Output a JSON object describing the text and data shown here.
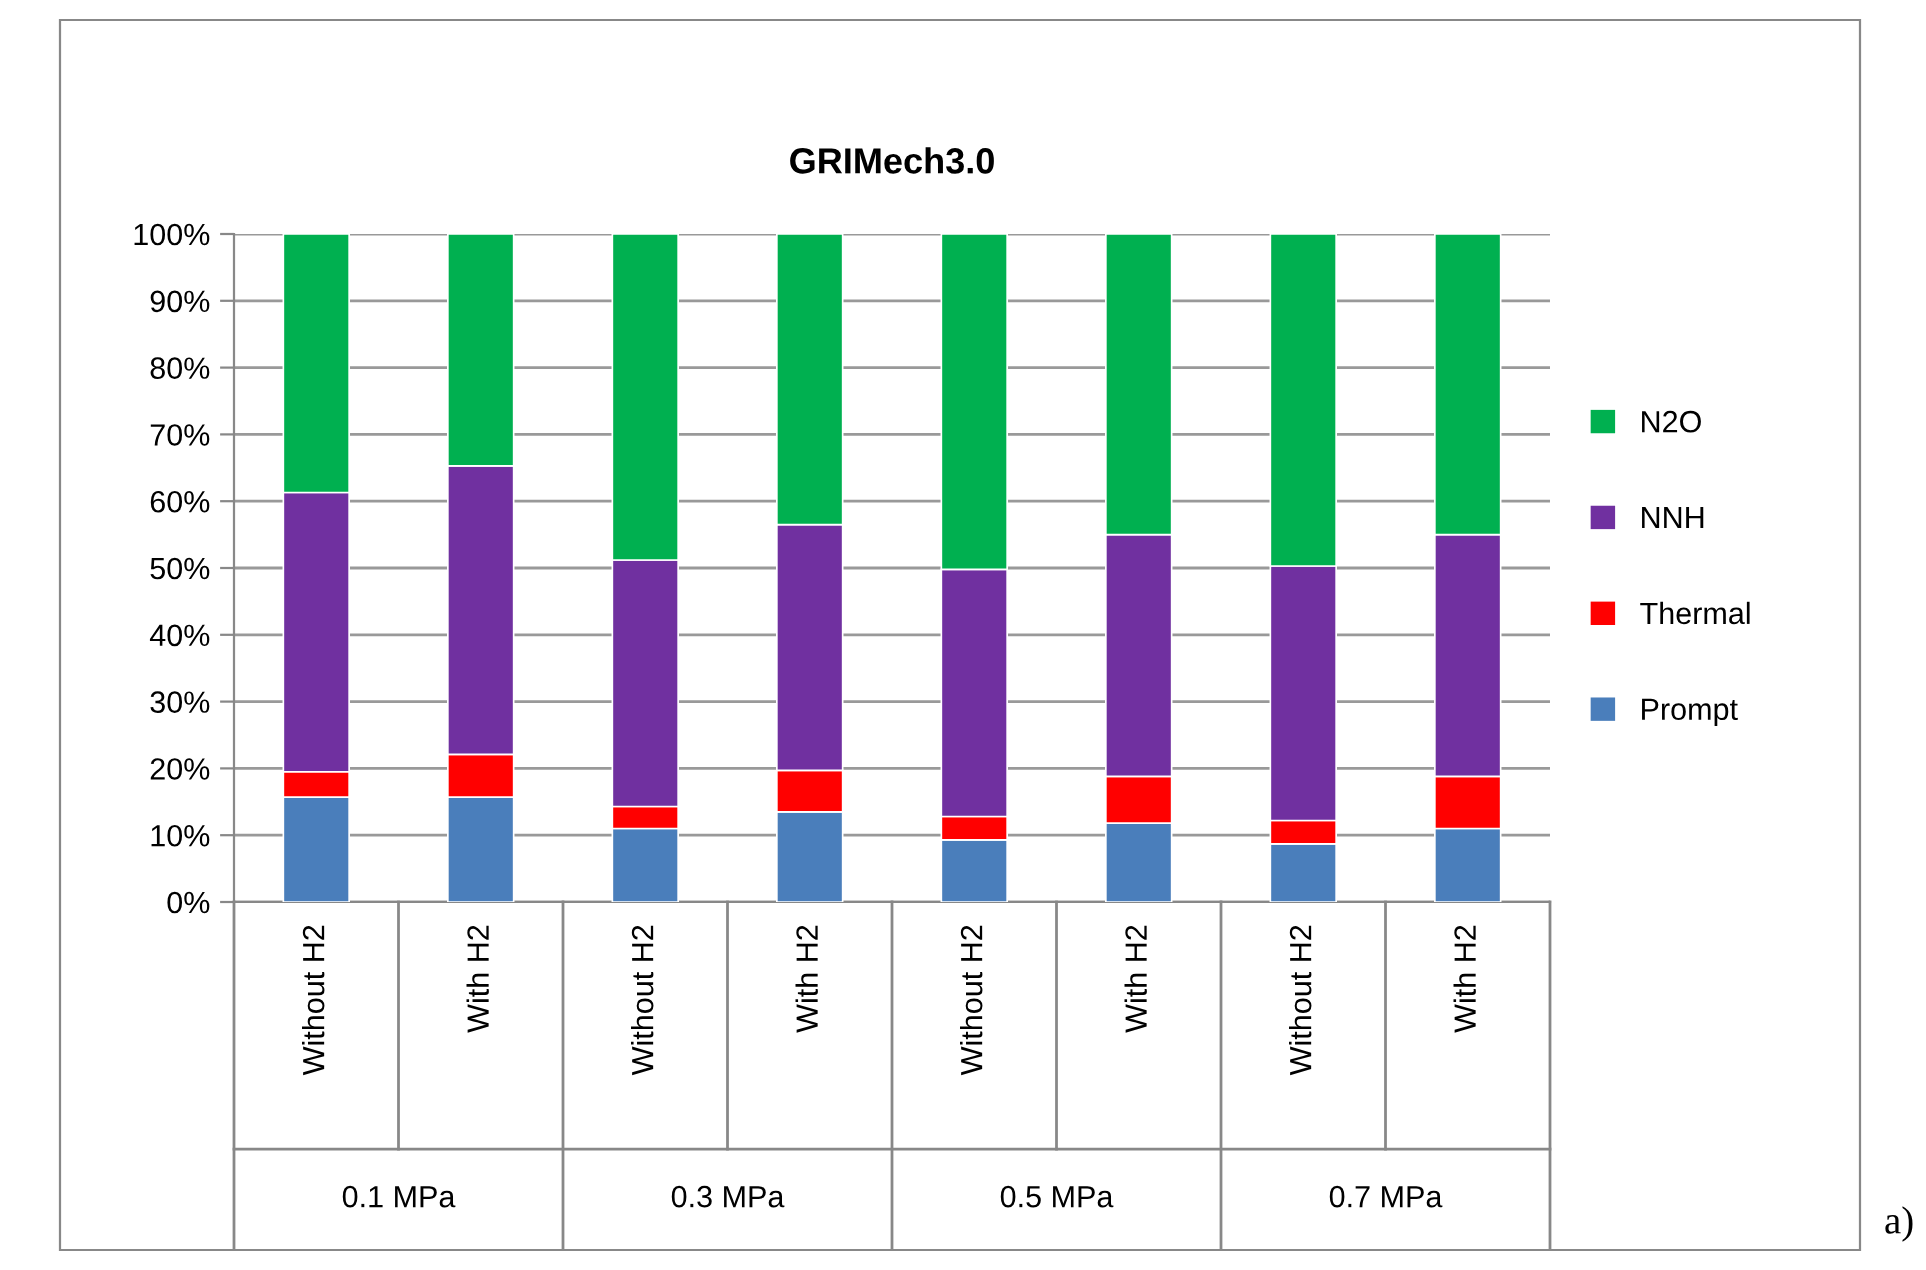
{
  "chart_data": {
    "type": "bar",
    "title": "GRIMech3.0",
    "stacked": true,
    "categories": [
      "Without H2",
      "With H2",
      "Without H2",
      "With H2",
      "Without H2",
      "With H2",
      "Without H2",
      "With H2"
    ],
    "series": [
      {
        "name": "Prompt",
        "color": "#4a7ebb",
        "values": [
          15.7,
          15.7,
          11.0,
          13.5,
          9.3,
          11.8,
          8.7,
          11.0
        ]
      },
      {
        "name": "Thermal",
        "color": "#ff0000",
        "values": [
          3.8,
          6.4,
          3.3,
          6.2,
          3.5,
          7.0,
          3.5,
          7.8
        ]
      },
      {
        "name": "NNH",
        "color": "#7030a0",
        "values": [
          41.8,
          43.2,
          36.9,
          36.8,
          37.0,
          36.2,
          38.1,
          36.2
        ]
      },
      {
        "name": "N2O",
        "color": "#00b050",
        "values": [
          38.7,
          34.7,
          48.8,
          43.5,
          50.2,
          45.0,
          49.7,
          45.0
        ]
      }
    ],
    "ylim": [
      0,
      100
    ],
    "yticks": [
      {
        "value": 0,
        "label": "0%"
      },
      {
        "value": 10,
        "label": "10%"
      },
      {
        "value": 20,
        "label": "20%"
      },
      {
        "value": 30,
        "label": "30%"
      },
      {
        "value": 40,
        "label": "40%"
      },
      {
        "value": 50,
        "label": "50%"
      },
      {
        "value": 60,
        "label": "60%"
      },
      {
        "value": 70,
        "label": "70%"
      },
      {
        "value": 80,
        "label": "80%"
      },
      {
        "value": 90,
        "label": "90%"
      },
      {
        "value": 100,
        "label": "100%"
      }
    ],
    "grid": "y",
    "legend": "right",
    "annotations": [
      "0.1 MPa",
      "0.3 MPa",
      "0.5 MPa",
      "0.7 MPa",
      "a)"
    ]
  }
}
